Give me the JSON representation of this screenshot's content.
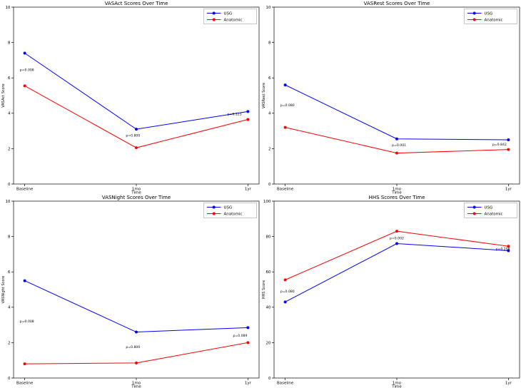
{
  "figure": {
    "background": "#ffffff",
    "layout": "2x2 grid of line subplots",
    "grid": "off"
  },
  "colors": {
    "usg": "#0000ff",
    "anatomic": "#ff0000",
    "spine": "#000000",
    "annotation_text": "#3a3a3a",
    "legend_border": "#b0b0b0"
  },
  "chart_data": [
    {
      "type": "line",
      "title": "VASAct Scores Over Time",
      "xlabel": "Time",
      "ylabel": "VASAct Score",
      "categories": [
        "Baseline",
        "1mo",
        "1yr"
      ],
      "ylim": [
        0,
        10
      ],
      "yticks": [
        0,
        2,
        4,
        6,
        8,
        10
      ],
      "legend_position": "upper right",
      "series": [
        {
          "name": "USG",
          "color": "#0000ff",
          "marker": "circle",
          "values": [
            7.4,
            3.1,
            4.1
          ]
        },
        {
          "name": "Anatomic",
          "color": "#ff0000",
          "marker": "circle",
          "values": [
            5.55,
            2.05,
            3.65
          ]
        }
      ],
      "annotations": [
        {
          "x": 0.02,
          "y": 6.45,
          "text": "p=0.008"
        },
        {
          "x": 0.97,
          "y": 2.75,
          "text": "p=0.800"
        },
        {
          "x": 1.88,
          "y": 3.95,
          "text": "p=0.123"
        }
      ]
    },
    {
      "type": "line",
      "title": "VASRest Scores Over Time",
      "xlabel": "Time",
      "ylabel": "VASRest Score",
      "categories": [
        "Baseline",
        "1mo",
        "1yr"
      ],
      "ylim": [
        0,
        10
      ],
      "yticks": [
        0,
        2,
        4,
        6,
        8,
        10
      ],
      "legend_position": "upper right",
      "series": [
        {
          "name": "USG",
          "color": "#0000ff",
          "marker": "circle",
          "values": [
            5.6,
            2.55,
            2.5
          ]
        },
        {
          "name": "Anatomic",
          "color": "#ff0000",
          "marker": "circle",
          "values": [
            3.2,
            1.75,
            1.95
          ]
        }
      ],
      "annotations": [
        {
          "x": 0.02,
          "y": 4.45,
          "text": "p=0.080"
        },
        {
          "x": 1.02,
          "y": 2.2,
          "text": "p=0.001"
        },
        {
          "x": 1.92,
          "y": 2.25,
          "text": "p=0.842"
        }
      ]
    },
    {
      "type": "line",
      "title": "VASNight Scores Over Time",
      "xlabel": "Time",
      "ylabel": "VASNight Score",
      "categories": [
        "Baseline",
        "1mo",
        "1yr"
      ],
      "ylim": [
        0,
        10
      ],
      "yticks": [
        0,
        2,
        4,
        6,
        8,
        10
      ],
      "legend_position": "upper right",
      "series": [
        {
          "name": "USG",
          "color": "#0000ff",
          "marker": "circle",
          "values": [
            5.5,
            2.6,
            2.85
          ]
        },
        {
          "name": "Anatomic",
          "color": "#ff0000",
          "marker": "circle",
          "values": [
            0.8,
            0.85,
            2.0
          ]
        }
      ],
      "annotations": [
        {
          "x": 0.02,
          "y": 3.2,
          "text": "p=0.008"
        },
        {
          "x": 0.97,
          "y": 1.75,
          "text": "p=0.800"
        },
        {
          "x": 1.93,
          "y": 2.4,
          "text": "p=0.089"
        }
      ]
    },
    {
      "type": "line",
      "title": "HHS Scores Over Time",
      "xlabel": "Time",
      "ylabel": "HHS Score",
      "categories": [
        "Baseline",
        "1mo",
        "1yr"
      ],
      "ylim": [
        0,
        100
      ],
      "yticks": [
        0,
        20,
        40,
        60,
        80,
        100
      ],
      "legend_position": "upper right",
      "series": [
        {
          "name": "USG",
          "color": "#0000ff",
          "marker": "circle",
          "values": [
            43,
            76,
            72
          ]
        },
        {
          "name": "Anatomic",
          "color": "#ff0000",
          "marker": "circle",
          "values": [
            55.5,
            83,
            74.5
          ]
        }
      ],
      "annotations": [
        {
          "x": 0.02,
          "y": 49,
          "text": "p=0.080"
        },
        {
          "x": 1.0,
          "y": 79,
          "text": "p=0.002"
        },
        {
          "x": 1.95,
          "y": 73,
          "text": "p=0.208"
        }
      ]
    }
  ]
}
